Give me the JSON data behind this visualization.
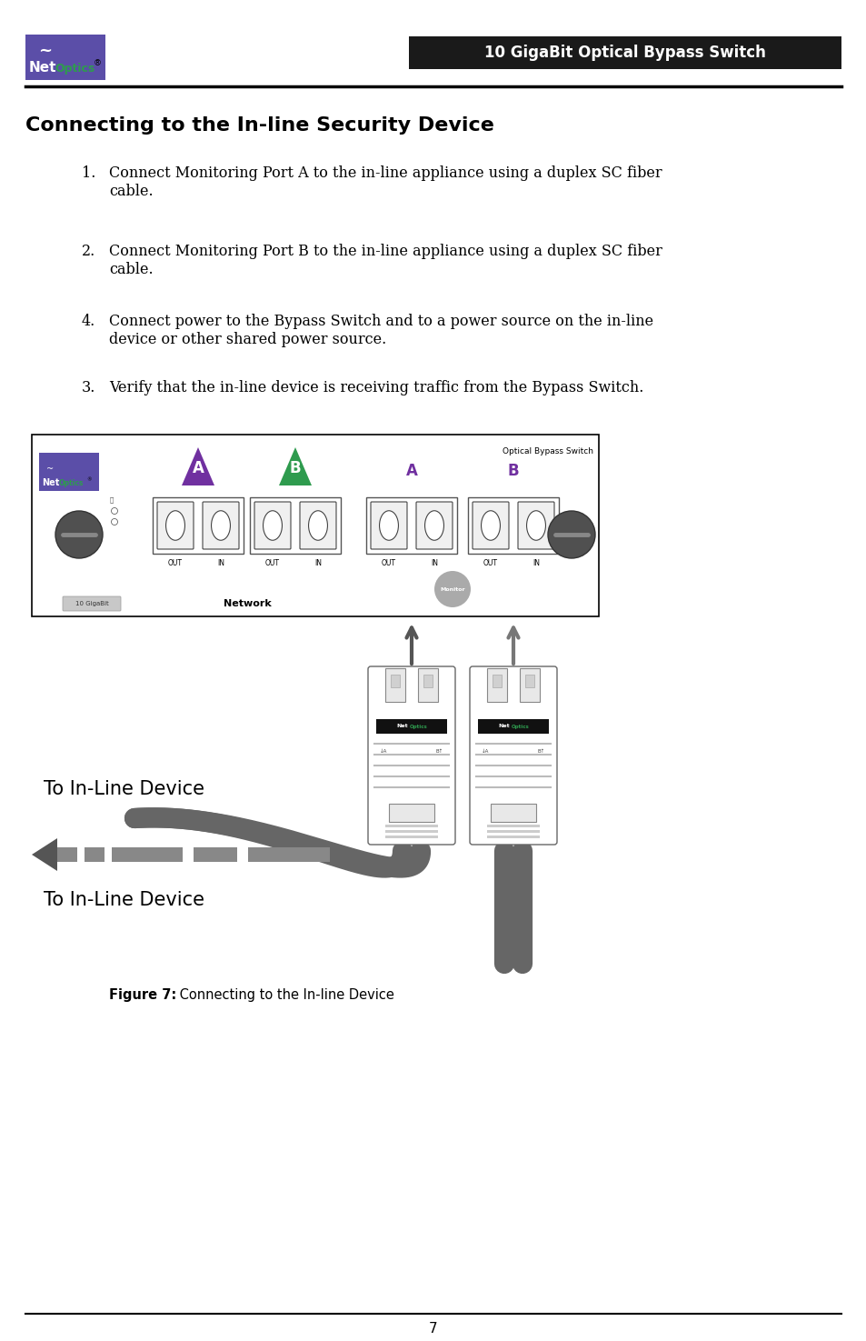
{
  "bg_color": "#ffffff",
  "page_width": 9.54,
  "page_height": 14.75,
  "header": {
    "logo_bg": "#5b4ea8",
    "logo_net_color": "#ffffff",
    "logo_optics_color": "#2e9b4e",
    "title_bar_text": "10 GigaBit Optical Bypass Switch",
    "title_bar_bg": "#1a1a1a",
    "title_bar_text_color": "#ffffff",
    "header_line_color": "#000000"
  },
  "section_title": "Connecting to the In-line Security Device",
  "list_items": [
    {
      "num": "1.",
      "text": "Connect Monitoring Port A to the in-line appliance using a duplex SC fiber\ncable."
    },
    {
      "num": "2.",
      "text": "Connect Monitoring Port B to the in-line appliance using a duplex SC fiber\ncable."
    },
    {
      "num": "4.",
      "text": "Connect power to the Bypass Switch and to a power source on the in-line\ndevice or other shared power source."
    },
    {
      "num": "3.",
      "text": "Verify that the in-line device is receiving traffic from the Bypass Switch."
    }
  ],
  "caption_bold": "Figure 7:",
  "caption_normal": " Connecting to the In-line Device",
  "label_inline1": "To In-Line Device",
  "label_inline2": "To In-Line Device",
  "footer_line_color": "#000000",
  "page_number": "7",
  "triangle_A_color": "#7030a0",
  "triangle_B_color": "#2e9b4e",
  "label_A_color": "#7030a0",
  "label_B_color": "#7030a0",
  "cable_color": "#666666",
  "monitor_badge_color": "#aaaaaa"
}
